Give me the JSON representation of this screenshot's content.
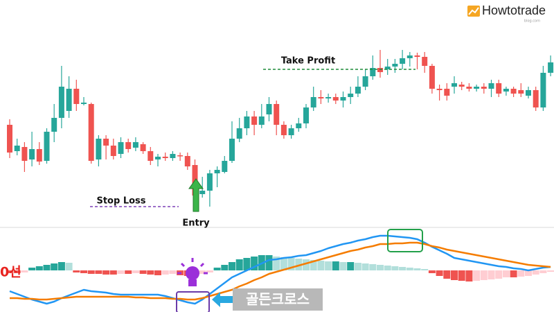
{
  "brand": {
    "text": "Howtotrade",
    "sub": "blog.com"
  },
  "chart_data": [
    {
      "type": "candlestick",
      "ylim": [
        0,
        330
      ],
      "up_color": "#26a69a",
      "down_color": "#ef5350",
      "candles": [
        {
          "open": 150,
          "high": 158,
          "low": 102,
          "close": 110
        },
        {
          "open": 112,
          "high": 130,
          "low": 106,
          "close": 120
        },
        {
          "open": 118,
          "high": 125,
          "low": 82,
          "close": 98
        },
        {
          "open": 100,
          "high": 140,
          "low": 90,
          "close": 115
        },
        {
          "open": 115,
          "high": 125,
          "low": 92,
          "close": 97
        },
        {
          "open": 98,
          "high": 145,
          "low": 94,
          "close": 140
        },
        {
          "open": 140,
          "high": 180,
          "low": 125,
          "close": 160
        },
        {
          "open": 160,
          "high": 235,
          "low": 145,
          "close": 205
        },
        {
          "open": 170,
          "high": 220,
          "low": 160,
          "close": 202
        },
        {
          "open": 202,
          "high": 215,
          "low": 170,
          "close": 180
        },
        {
          "open": 180,
          "high": 190,
          "low": 178,
          "close": 182
        },
        {
          "open": 180,
          "high": 182,
          "low": 94,
          "close": 98
        },
        {
          "open": 100,
          "high": 135,
          "low": 90,
          "close": 130
        },
        {
          "open": 130,
          "high": 135,
          "low": 100,
          "close": 120
        },
        {
          "open": 120,
          "high": 130,
          "low": 100,
          "close": 105
        },
        {
          "open": 108,
          "high": 132,
          "low": 102,
          "close": 125
        },
        {
          "open": 125,
          "high": 130,
          "low": 110,
          "close": 115
        },
        {
          "open": 117,
          "high": 132,
          "low": 112,
          "close": 125
        },
        {
          "open": 122,
          "high": 125,
          "low": 108,
          "close": 112
        },
        {
          "open": 112,
          "high": 118,
          "low": 92,
          "close": 98
        },
        {
          "open": 100,
          "high": 108,
          "low": 90,
          "close": 104
        },
        {
          "open": 104,
          "high": 110,
          "low": 98,
          "close": 102
        },
        {
          "open": 102,
          "high": 112,
          "low": 98,
          "close": 108
        },
        {
          "open": 106,
          "high": 110,
          "low": 98,
          "close": 105
        },
        {
          "open": 105,
          "high": 110,
          "low": 85,
          "close": 90
        },
        {
          "open": 92,
          "high": 100,
          "low": 45,
          "close": 48
        },
        {
          "open": 50,
          "high": 75,
          "low": 45,
          "close": 55
        },
        {
          "open": 55,
          "high": 85,
          "low": 32,
          "close": 80
        },
        {
          "open": 80,
          "high": 90,
          "low": 60,
          "close": 85
        },
        {
          "open": 82,
          "high": 105,
          "low": 80,
          "close": 98
        },
        {
          "open": 98,
          "high": 155,
          "low": 95,
          "close": 130
        },
        {
          "open": 130,
          "high": 160,
          "low": 125,
          "close": 145
        },
        {
          "open": 145,
          "high": 170,
          "low": 135,
          "close": 162
        },
        {
          "open": 162,
          "high": 170,
          "low": 135,
          "close": 150
        },
        {
          "open": 150,
          "high": 180,
          "low": 145,
          "close": 162
        },
        {
          "open": 165,
          "high": 190,
          "low": 155,
          "close": 180
        },
        {
          "open": 180,
          "high": 185,
          "low": 135,
          "close": 150
        },
        {
          "open": 150,
          "high": 155,
          "low": 130,
          "close": 135
        },
        {
          "open": 135,
          "high": 150,
          "low": 130,
          "close": 145
        },
        {
          "open": 145,
          "high": 160,
          "low": 140,
          "close": 152
        },
        {
          "open": 152,
          "high": 180,
          "low": 145,
          "close": 175
        },
        {
          "open": 175,
          "high": 205,
          "low": 170,
          "close": 190
        },
        {
          "open": 190,
          "high": 200,
          "low": 180,
          "close": 188
        },
        {
          "open": 188,
          "high": 195,
          "low": 182,
          "close": 190
        },
        {
          "open": 190,
          "high": 195,
          "low": 180,
          "close": 185
        },
        {
          "open": 185,
          "high": 198,
          "low": 175,
          "close": 190
        },
        {
          "open": 190,
          "high": 205,
          "low": 180,
          "close": 195
        },
        {
          "open": 195,
          "high": 220,
          "low": 190,
          "close": 205
        },
        {
          "open": 205,
          "high": 230,
          "low": 200,
          "close": 220
        },
        {
          "open": 220,
          "high": 250,
          "low": 215,
          "close": 232
        },
        {
          "open": 232,
          "high": 258,
          "low": 218,
          "close": 226
        },
        {
          "open": 230,
          "high": 245,
          "low": 222,
          "close": 234
        },
        {
          "open": 234,
          "high": 245,
          "low": 225,
          "close": 238
        },
        {
          "open": 238,
          "high": 258,
          "low": 230,
          "close": 246
        },
        {
          "open": 246,
          "high": 255,
          "low": 234,
          "close": 250
        },
        {
          "open": 250,
          "high": 254,
          "low": 230,
          "close": 248
        },
        {
          "open": 248,
          "high": 255,
          "low": 225,
          "close": 235
        },
        {
          "open": 235,
          "high": 238,
          "low": 195,
          "close": 202
        },
        {
          "open": 202,
          "high": 208,
          "low": 185,
          "close": 200
        },
        {
          "open": 202,
          "high": 210,
          "low": 185,
          "close": 192
        },
        {
          "open": 205,
          "high": 220,
          "low": 195,
          "close": 210
        },
        {
          "open": 208,
          "high": 212,
          "low": 200,
          "close": 205
        },
        {
          "open": 205,
          "high": 210,
          "low": 198,
          "close": 202
        },
        {
          "open": 202,
          "high": 208,
          "low": 198,
          "close": 205
        },
        {
          "open": 205,
          "high": 210,
          "low": 195,
          "close": 202
        },
        {
          "open": 202,
          "high": 215,
          "low": 190,
          "close": 210
        },
        {
          "open": 210,
          "high": 215,
          "low": 190,
          "close": 195
        },
        {
          "open": 198,
          "high": 205,
          "low": 192,
          "close": 202
        },
        {
          "open": 202,
          "high": 205,
          "low": 190,
          "close": 195
        },
        {
          "open": 200,
          "high": 210,
          "low": 190,
          "close": 195
        },
        {
          "open": 192,
          "high": 205,
          "low": 188,
          "close": 200
        },
        {
          "open": 200,
          "high": 205,
          "low": 170,
          "close": 175
        },
        {
          "open": 175,
          "high": 235,
          "low": 170,
          "close": 225
        },
        {
          "open": 225,
          "high": 250,
          "low": 220,
          "close": 240
        }
      ],
      "annotations": [
        {
          "text": "Take Profit",
          "value": 230,
          "color": "#1e8c3a"
        },
        {
          "text": "Stop Loss",
          "value": 32,
          "color": "#7b3fb5"
        },
        {
          "text": "Entry",
          "color": "#3bb54a"
        }
      ]
    },
    {
      "type": "macd",
      "ylim": [
        -60,
        60
      ],
      "histogram": {
        "pos_up": "#26a69a",
        "pos_down": "#b2dfdb",
        "neg_down": "#ef5350",
        "neg_up": "#ffcdd2",
        "values": [
          -4,
          -4,
          -3,
          4,
          6,
          8,
          10,
          12,
          11,
          -3,
          -4,
          -5,
          -5,
          -6,
          -6,
          -5,
          -5,
          -4,
          -5,
          -6,
          -7,
          -6,
          -5,
          -7,
          -8,
          -7,
          -5,
          -3,
          4,
          8,
          12,
          16,
          18,
          20,
          22,
          22,
          20,
          19,
          18,
          17,
          16,
          15,
          14,
          13,
          13,
          12,
          12,
          11,
          10,
          9,
          8,
          7,
          6,
          5,
          4,
          3,
          2,
          -4,
          -8,
          -12,
          -14,
          -15,
          -16,
          -15,
          -14,
          -13,
          -12,
          -10,
          -10,
          -9,
          -8,
          -6,
          -4,
          -2
        ]
      },
      "lines": [
        {
          "color": "#2196f3",
          "values": [
            -30,
            -34,
            -38,
            -42,
            -45,
            -48,
            -45,
            -40,
            -36,
            -32,
            -28,
            -30,
            -31,
            -32,
            -34,
            -35,
            -35,
            -35,
            -35,
            -35,
            -35,
            -37,
            -40,
            -43,
            -46,
            -48,
            -42,
            -34,
            -26,
            -18,
            -10,
            -5,
            0,
            5,
            10,
            15,
            16,
            18,
            19,
            21,
            22,
            25,
            28,
            32,
            35,
            38,
            40,
            43,
            45,
            48,
            50,
            50,
            49,
            48,
            47,
            45,
            40,
            34,
            29,
            24,
            18,
            16,
            14,
            12,
            10,
            8,
            6,
            5,
            3,
            2,
            0,
            2,
            4,
            5
          ]
        },
        {
          "color": "#f57c00",
          "values": [
            -40,
            -40,
            -41,
            -41,
            -42,
            -42,
            -41,
            -40,
            -39,
            -38,
            -38,
            -38,
            -38,
            -38,
            -38,
            -38,
            -38,
            -39,
            -39,
            -40,
            -40,
            -40,
            -41,
            -41,
            -42,
            -42,
            -40,
            -37,
            -34,
            -31,
            -28,
            -23,
            -19,
            -14,
            -10,
            -5,
            -2,
            1,
            4,
            7,
            10,
            13,
            16,
            19,
            22,
            25,
            28,
            30,
            33,
            35,
            38,
            38,
            39,
            39,
            40,
            40,
            38,
            35,
            33,
            30,
            28,
            26,
            24,
            22,
            20,
            18,
            16,
            14,
            12,
            10,
            8,
            7,
            6,
            5
          ]
        }
      ],
      "annotations": [
        {
          "text": "0선",
          "color": "#e8231f"
        },
        {
          "text": "골든크로스"
        }
      ]
    }
  ]
}
